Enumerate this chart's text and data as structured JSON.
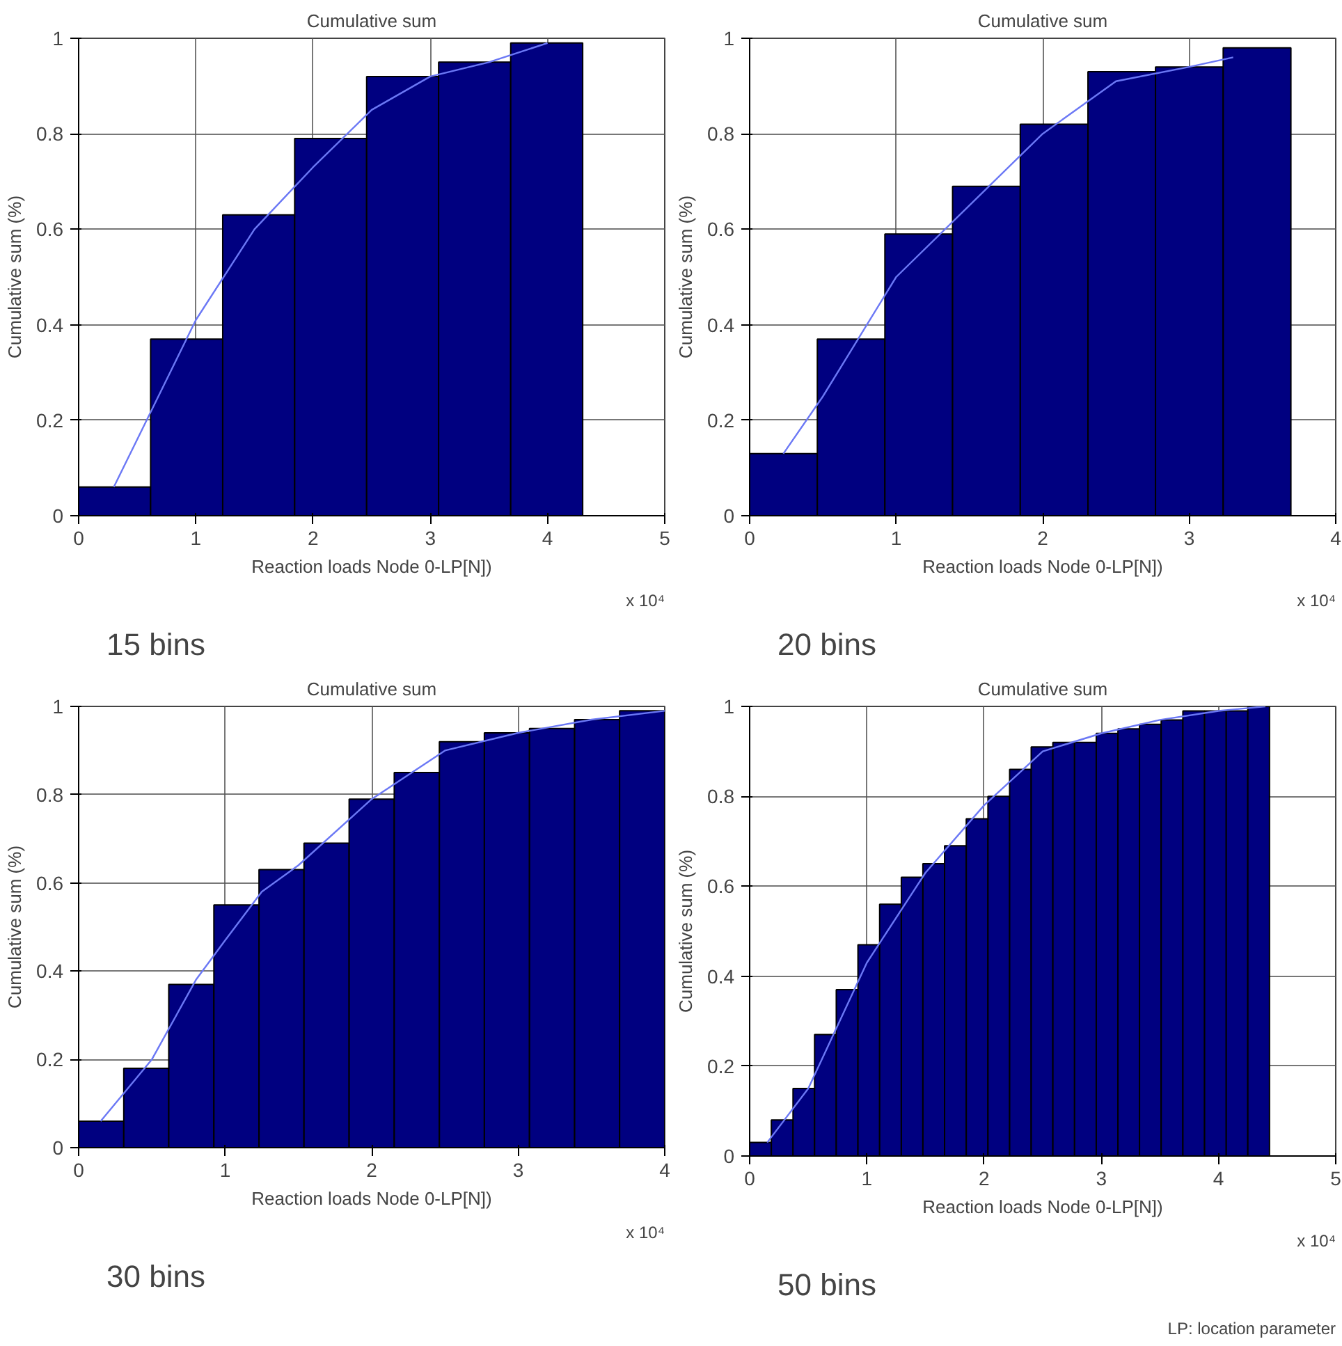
{
  "chart_data": [
    {
      "type": "histogram",
      "title": "Cumulative sum",
      "xlabel": "Reaction loads Node 0-LP[N])",
      "ylabel": "Cumulative sum (%)",
      "color": "#000080",
      "bins": [
        0,
        0.614,
        1.229,
        1.843,
        2.457,
        3.071,
        3.686,
        4.3
      ],
      "values": [
        0.06,
        0.37,
        0.63,
        0.79,
        0.92,
        0.95,
        0.99
      ],
      "series": [
        {
          "type": "line",
          "color": "#6b78f5",
          "x": [
            0.3,
            0.6,
            1,
            1.5,
            2,
            2.5,
            3,
            3.5,
            4
          ],
          "values": [
            0.06,
            0.21,
            0.41,
            0.6,
            0.73,
            0.85,
            0.92,
            0.95,
            0.99
          ]
        }
      ],
      "xlim": [
        0,
        5
      ],
      "ylim": [
        0,
        1
      ],
      "xticks": [
        0,
        1,
        2,
        3,
        4,
        5
      ],
      "yticks": [
        0,
        0.2,
        0.4,
        0.6,
        0.8,
        1
      ],
      "grid": true,
      "annotations": [
        "x 10⁴",
        "15 bins"
      ]
    },
    {
      "type": "histogram",
      "title": "Cumulative sum",
      "xlabel": "Reaction loads Node 0-LP[N])",
      "ylabel": "Cumulative sum (%)",
      "color": "#000080",
      "bins": [
        0,
        0.462,
        0.923,
        1.385,
        1.847,
        2.309,
        2.77,
        3.232,
        3.694
      ],
      "values": [
        0.13,
        0.37,
        0.59,
        0.69,
        0.82,
        0.93,
        0.94,
        0.98
      ],
      "series": [
        {
          "type": "line",
          "color": "#6b78f5",
          "x": [
            0.23,
            0.5,
            1,
            1.5,
            2,
            2.5,
            3,
            3.3
          ],
          "values": [
            0.13,
            0.25,
            0.5,
            0.65,
            0.8,
            0.91,
            0.94,
            0.96
          ]
        }
      ],
      "xlim": [
        0,
        4
      ],
      "ylim": [
        0,
        1
      ],
      "xticks": [
        0,
        1,
        2,
        3,
        4
      ],
      "yticks": [
        0,
        0.2,
        0.4,
        0.6,
        0.8,
        1
      ],
      "grid": true,
      "annotations": [
        "x 10⁴",
        "20 bins"
      ]
    },
    {
      "type": "histogram",
      "title": "Cumulative sum",
      "xlabel": "Reaction loads Node 0-LP[N])",
      "ylabel": "Cumulative sum (%)",
      "color": "#000080",
      "bins": [
        0,
        0.308,
        0.615,
        0.923,
        1.231,
        1.538,
        1.846,
        2.154,
        2.462,
        2.769,
        3.077,
        3.385,
        3.692,
        4
      ],
      "values": [
        0.06,
        0.18,
        0.37,
        0.55,
        0.63,
        0.69,
        0.79,
        0.85,
        0.92,
        0.94,
        0.95,
        0.97,
        0.99
      ],
      "series": [
        {
          "type": "line",
          "color": "#6b78f5",
          "x": [
            0.15,
            0.5,
            0.8,
            1,
            1.25,
            1.5,
            2,
            2.5,
            3,
            3.5,
            4
          ],
          "values": [
            0.06,
            0.2,
            0.38,
            0.47,
            0.58,
            0.64,
            0.79,
            0.9,
            0.94,
            0.97,
            0.99
          ]
        }
      ],
      "xlim": [
        0,
        4
      ],
      "ylim": [
        0,
        1
      ],
      "xticks": [
        0,
        1,
        2,
        3,
        4
      ],
      "yticks": [
        0,
        0.2,
        0.4,
        0.6,
        0.8,
        1
      ],
      "grid": true,
      "annotations": [
        "x 10⁴",
        "30 bins"
      ]
    },
    {
      "type": "histogram",
      "title": "Cumulative sum",
      "xlabel": "Reaction loads Node 0-LP[N])",
      "ylabel": "Cumulative sum (%)",
      "color": "#000080",
      "bins": [
        0,
        0.185,
        0.37,
        0.554,
        0.739,
        0.924,
        1.109,
        1.294,
        1.478,
        1.663,
        1.848,
        2.033,
        2.218,
        2.402,
        2.587,
        2.772,
        2.957,
        3.142,
        3.326,
        3.511,
        3.696,
        3.881,
        4.066,
        4.25,
        4.435
      ],
      "values": [
        0.03,
        0.08,
        0.15,
        0.27,
        0.37,
        0.47,
        0.56,
        0.62,
        0.65,
        0.69,
        0.75,
        0.8,
        0.86,
        0.91,
        0.92,
        0.92,
        0.94,
        0.95,
        0.96,
        0.97,
        0.99,
        0.99,
        0.99,
        1
      ],
      "series": [
        {
          "type": "line",
          "color": "#6b78f5",
          "x": [
            0.15,
            0.5,
            1,
            1.5,
            2,
            2.5,
            3,
            3.5,
            4,
            4.4
          ],
          "values": [
            0.03,
            0.15,
            0.43,
            0.63,
            0.78,
            0.9,
            0.94,
            0.97,
            0.99,
            1
          ]
        }
      ],
      "xlim": [
        0,
        5
      ],
      "ylim": [
        0,
        1
      ],
      "xticks": [
        0,
        1,
        2,
        3,
        4,
        5
      ],
      "yticks": [
        0,
        0.2,
        0.4,
        0.6,
        0.8,
        1
      ],
      "grid": true,
      "annotations": [
        "x 10⁴",
        "50 bins",
        "LP: location parameter"
      ]
    }
  ]
}
